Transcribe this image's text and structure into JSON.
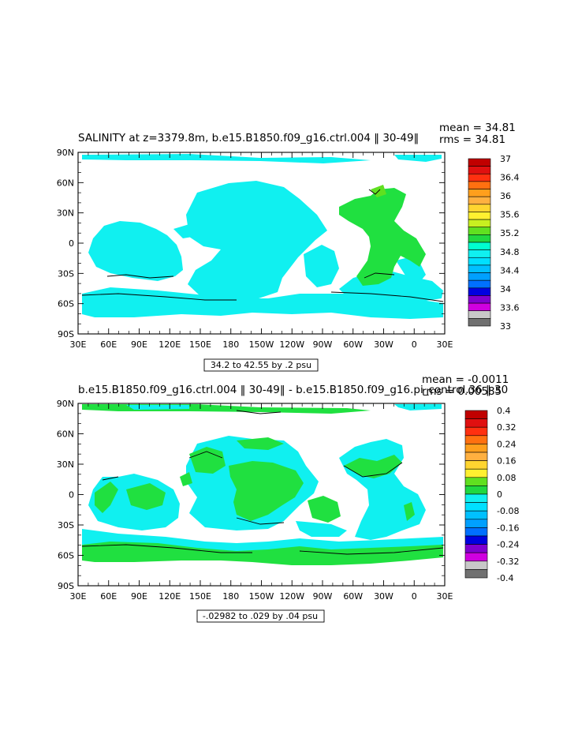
{
  "panel1": {
    "title": "SALINITY at z=3379.8m, b.e15.B1850.f09_g16.ctrl.004  ‖ 30-49‖",
    "stat_mean": "mean = 34.81",
    "stat_rms": "rms = 34.81",
    "contour_info": "34.2 to 42.55 by .2 psu",
    "colorbar": {
      "labels": [
        "37",
        "36.4",
        "36",
        "35.6",
        "35.2",
        "34.8",
        "34.4",
        "34",
        "33.6",
        "33"
      ],
      "colors": [
        "#c00000",
        "#e01010",
        "#ff3010",
        "#ff7010",
        "#ff9f1c",
        "#ffb040",
        "#ffd530",
        "#fff030",
        "#c8f020",
        "#60e020",
        "#20d840",
        "#00ffd0",
        "#10f0f0",
        "#00e0ff",
        "#00c0ff",
        "#00a0ff",
        "#0070ff",
        "#0000e0",
        "#8000d0",
        "#d000e0",
        "#c8c8c8",
        "#707070"
      ]
    }
  },
  "panel2": {
    "title": "b.e15.B1850.f09_g16.ctrl.004  ‖ 30-49‖  -  b.e15.B1850.f09_g16.pi_control.36  ‖ 30",
    "stat_mean": "mean = -0.0011",
    "stat_rms": "rms = 0.00585",
    "contour_info": "-.02982 to .029 by .04 psu",
    "colorbar": {
      "labels": [
        "0.4",
        "0.32",
        "0.24",
        "0.16",
        "0.08",
        "0",
        "-0.08",
        "-0.16",
        "-0.24",
        "-0.32",
        "-0.4"
      ],
      "colors": [
        "#c00000",
        "#e01010",
        "#ff3010",
        "#ff7010",
        "#ff9f1c",
        "#ffb040",
        "#ffd530",
        "#fff030",
        "#60e020",
        "#20d840",
        "#10f0f0",
        "#00e0ff",
        "#00c0ff",
        "#00a0ff",
        "#0070ff",
        "#0000e0",
        "#8000d0",
        "#d000e0",
        "#c8c8c8",
        "#707070"
      ]
    }
  },
  "axes": {
    "lat_labels": [
      "90N",
      "60N",
      "30N",
      "0",
      "30S",
      "60S",
      "90S"
    ],
    "lon_labels": [
      "30E",
      "60E",
      "90E",
      "120E",
      "150E",
      "180",
      "150W",
      "120W",
      "90W",
      "60W",
      "30W",
      "0",
      "30E"
    ]
  },
  "map_colors": {
    "ocean_low": "#10f0f0",
    "ocean_high": "#20e040",
    "ocean_hi2": "#60e020",
    "land": "#ffffff"
  }
}
